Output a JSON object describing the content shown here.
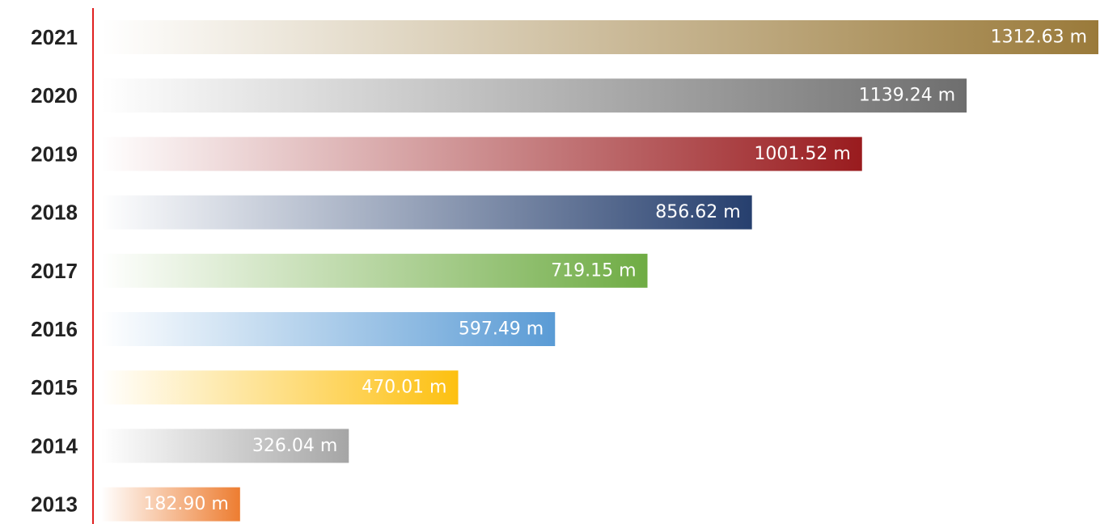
{
  "chart_data": {
    "type": "bar",
    "orientation": "horizontal",
    "categories": [
      "2021",
      "2020",
      "2019",
      "2018",
      "2017",
      "2016",
      "2015",
      "2014",
      "2013"
    ],
    "values": [
      1312.63,
      1139.24,
      1001.52,
      856.62,
      719.15,
      597.49,
      470.01,
      326.04,
      182.9
    ],
    "value_labels": [
      "1312.63 m",
      "1139.24 m",
      "1001.52 m",
      "856.62 m",
      "719.15 m",
      "597.49 m",
      "470.01 m",
      "326.04 m",
      "182.90 m"
    ],
    "bar_colors": [
      "#9a7a3a",
      "#6e6e6e",
      "#991b1e",
      "#263f6e",
      "#6fac44",
      "#5a9bd5",
      "#fdc010",
      "#a5a5a5",
      "#ed7d31"
    ],
    "axis_color": "#e02020",
    "title": "",
    "xlabel": "",
    "ylabel": "",
    "xlim": [
      0,
      1312.63
    ],
    "grid": false,
    "legend": false
  }
}
